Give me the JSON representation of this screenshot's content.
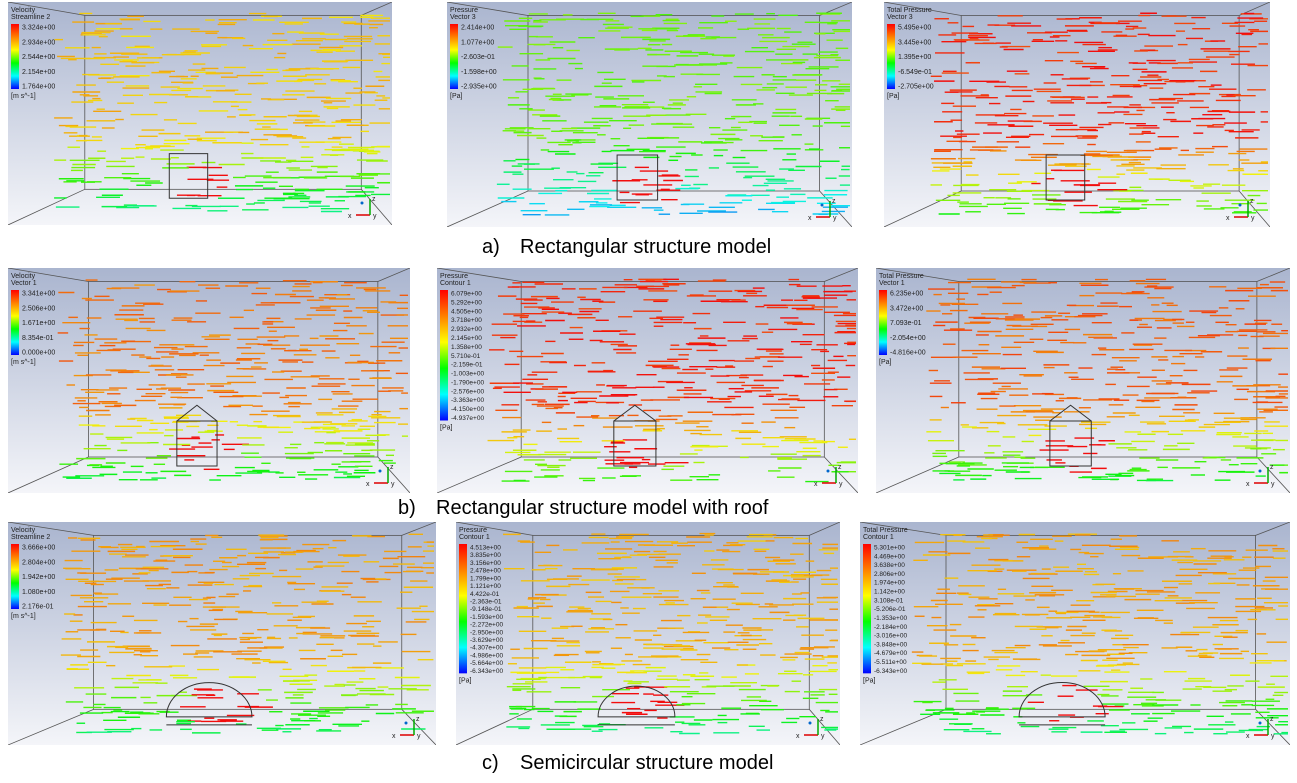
{
  "axis_triad": {
    "x": "x",
    "y": "y",
    "z": "z"
  },
  "rows": [
    {
      "label": "a)",
      "caption": "Rectangular structure model",
      "panels": [
        {
          "title": "Velocity",
          "subtitle": "Streamline 2",
          "ticks": [
            "3.324e+00",
            "2.934e+00",
            "2.544e+00",
            "2.154e+00",
            "1.764e+00"
          ],
          "unit": "[m s^-1]"
        },
        {
          "title": "Pressure",
          "subtitle": "Vector 3",
          "ticks": [
            "2.414e+00",
            "1.077e+00",
            "-2.603e-01",
            "-1.598e+00",
            "-2.935e+00"
          ],
          "unit": "[Pa]"
        },
        {
          "title": "Total Pressure",
          "subtitle": "Vector 3",
          "ticks": [
            "5.495e+00",
            "3.445e+00",
            "1.395e+00",
            "-6.549e-01",
            "-2.705e+00"
          ],
          "unit": "[Pa]"
        }
      ]
    },
    {
      "label": "b)",
      "caption": "Rectangular structure model with roof",
      "panels": [
        {
          "title": "Velocity",
          "subtitle": "Vector 1",
          "ticks": [
            "3.341e+00",
            "2.506e+00",
            "1.671e+00",
            "8.354e-01",
            "0.000e+00"
          ],
          "unit": "[m s^-1]"
        },
        {
          "title": "Pressure",
          "subtitle": "Contour 1",
          "ticks": [
            "6.079e+00",
            "5.292e+00",
            "4.505e+00",
            "3.718e+00",
            "2.932e+00",
            "2.145e+00",
            "1.358e+00",
            "5.710e-01",
            "-2.159e-01",
            "-1.003e+00",
            "-1.790e+00",
            "-2.576e+00",
            "-3.363e+00",
            "-4.150e+00",
            "-4.937e+00"
          ],
          "unit": "[Pa]"
        },
        {
          "title": "Total Pressure",
          "subtitle": "Vector 1",
          "ticks": [
            "6.235e+00",
            "3.472e+00",
            "7.093e-01",
            "-2.054e+00",
            "-4.816e+00"
          ],
          "unit": "[Pa]"
        }
      ]
    },
    {
      "label": "c)",
      "caption": "Semicircular structure model",
      "panels": [
        {
          "title": "Velocity",
          "subtitle": "Streamline 2",
          "ticks": [
            "3.666e+00",
            "2.804e+00",
            "1.942e+00",
            "1.080e+00",
            "2.176e-01"
          ],
          "unit": "[m s^-1]"
        },
        {
          "title": "Pressure",
          "subtitle": "Contour 1",
          "ticks": [
            "4.513e+00",
            "3.835e+00",
            "3.156e+00",
            "2.478e+00",
            "1.799e+00",
            "1.121e+00",
            "4.422e-01",
            "-2.363e-01",
            "-9.148e-01",
            "-1.593e+00",
            "-2.272e+00",
            "-2.950e+00",
            "-3.629e+00",
            "-4.307e+00",
            "-4.986e+00",
            "-5.664e+00",
            "-6.343e+00"
          ],
          "unit": "[Pa]"
        },
        {
          "title": "Total Pressure",
          "subtitle": "Contour 1",
          "ticks": [
            "5.301e+00",
            "4.469e+00",
            "3.638e+00",
            "2.806e+00",
            "1.974e+00",
            "1.142e+00",
            "3.108e-01",
            "-5.206e-01",
            "-1.353e+00",
            "-2.184e+00",
            "-3.016e+00",
            "-3.848e+00",
            "-4.679e+00",
            "-5.511e+00",
            "-6.343e+00"
          ],
          "unit": "[Pa]"
        }
      ]
    }
  ]
}
